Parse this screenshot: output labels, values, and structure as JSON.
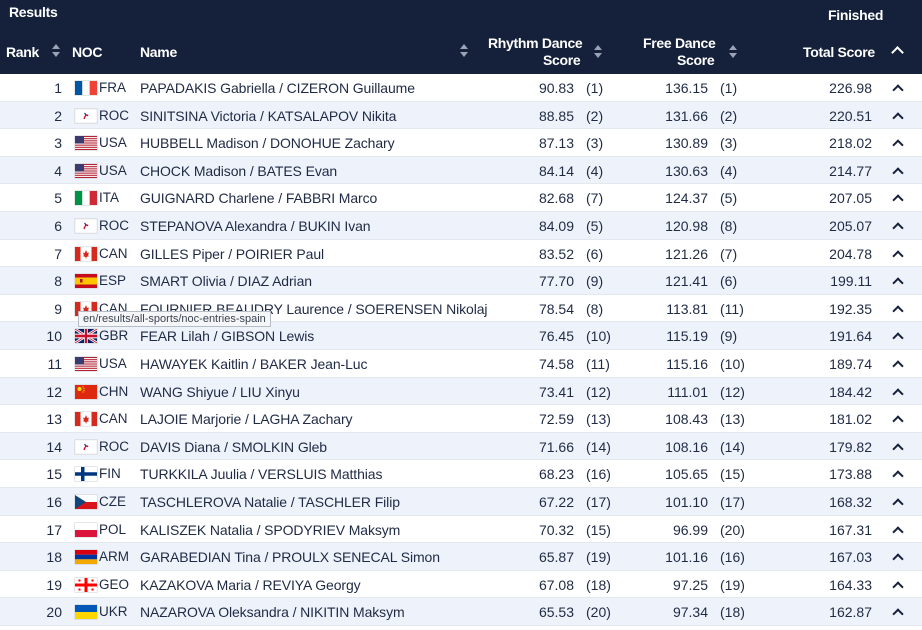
{
  "header": {
    "results": "Results",
    "finished": "Finished",
    "col_rank": "Rank",
    "col_noc": "NOC",
    "col_name": "Name",
    "col_rhythm_1": "Rhythm Dance",
    "col_rhythm_2": "Score",
    "col_free_1": "Free Dance",
    "col_free_2": "Score",
    "col_total": "Total Score"
  },
  "tooltip": "en/results/all-sports/noc-entries-spain",
  "colors": {
    "header_bg": "#15213a",
    "row_alt": "#eef3fb",
    "text": "#1f2a44"
  },
  "rows": [
    {
      "rank": "1",
      "noc": "FRA",
      "name": "PAPADAKIS Gabriella / CIZERON Guillaume",
      "rd": "90.83",
      "rdr": "(1)",
      "fd": "136.15",
      "fdr": "(1)",
      "total": "226.98"
    },
    {
      "rank": "2",
      "noc": "ROC",
      "name": "SINITSINA Victoria / KATSALAPOV Nikita",
      "rd": "88.85",
      "rdr": "(2)",
      "fd": "131.66",
      "fdr": "(2)",
      "total": "220.51"
    },
    {
      "rank": "3",
      "noc": "USA",
      "name": "HUBBELL Madison / DONOHUE Zachary",
      "rd": "87.13",
      "rdr": "(3)",
      "fd": "130.89",
      "fdr": "(3)",
      "total": "218.02"
    },
    {
      "rank": "4",
      "noc": "USA",
      "name": "CHOCK Madison / BATES Evan",
      "rd": "84.14",
      "rdr": "(4)",
      "fd": "130.63",
      "fdr": "(4)",
      "total": "214.77"
    },
    {
      "rank": "5",
      "noc": "ITA",
      "name": "GUIGNARD Charlene / FABBRI Marco",
      "rd": "82.68",
      "rdr": "(7)",
      "fd": "124.37",
      "fdr": "(5)",
      "total": "207.05"
    },
    {
      "rank": "6",
      "noc": "ROC",
      "name": "STEPANOVA Alexandra / BUKIN Ivan",
      "rd": "84.09",
      "rdr": "(5)",
      "fd": "120.98",
      "fdr": "(8)",
      "total": "205.07"
    },
    {
      "rank": "7",
      "noc": "CAN",
      "name": "GILLES Piper / POIRIER Paul",
      "rd": "83.52",
      "rdr": "(6)",
      "fd": "121.26",
      "fdr": "(7)",
      "total": "204.78"
    },
    {
      "rank": "8",
      "noc": "ESP",
      "name": "SMART Olivia / DIAZ Adrian",
      "rd": "77.70",
      "rdr": "(9)",
      "fd": "121.41",
      "fdr": "(6)",
      "total": "199.11"
    },
    {
      "rank": "9",
      "noc": "CAN",
      "name": "FOURNIER BEAUDRY Laurence / SOERENSEN Nikolaj",
      "rd": "78.54",
      "rdr": "(8)",
      "fd": "113.81",
      "fdr": "(11)",
      "total": "192.35"
    },
    {
      "rank": "10",
      "noc": "GBR",
      "name": "FEAR Lilah / GIBSON Lewis",
      "rd": "76.45",
      "rdr": "(10)",
      "fd": "115.19",
      "fdr": "(9)",
      "total": "191.64"
    },
    {
      "rank": "11",
      "noc": "USA",
      "name": "HAWAYEK Kaitlin / BAKER Jean-Luc",
      "rd": "74.58",
      "rdr": "(11)",
      "fd": "115.16",
      "fdr": "(10)",
      "total": "189.74"
    },
    {
      "rank": "12",
      "noc": "CHN",
      "name": "WANG Shiyue / LIU Xinyu",
      "rd": "73.41",
      "rdr": "(12)",
      "fd": "111.01",
      "fdr": "(12)",
      "total": "184.42"
    },
    {
      "rank": "13",
      "noc": "CAN",
      "name": "LAJOIE Marjorie / LAGHA Zachary",
      "rd": "72.59",
      "rdr": "(13)",
      "fd": "108.43",
      "fdr": "(13)",
      "total": "181.02"
    },
    {
      "rank": "14",
      "noc": "ROC",
      "name": "DAVIS Diana / SMOLKIN Gleb",
      "rd": "71.66",
      "rdr": "(14)",
      "fd": "108.16",
      "fdr": "(14)",
      "total": "179.82"
    },
    {
      "rank": "15",
      "noc": "FIN",
      "name": "TURKKILA Juulia / VERSLUIS Matthias",
      "rd": "68.23",
      "rdr": "(16)",
      "fd": "105.65",
      "fdr": "(15)",
      "total": "173.88"
    },
    {
      "rank": "16",
      "noc": "CZE",
      "name": "TASCHLEROVA Natalie / TASCHLER Filip",
      "rd": "67.22",
      "rdr": "(17)",
      "fd": "101.10",
      "fdr": "(17)",
      "total": "168.32"
    },
    {
      "rank": "17",
      "noc": "POL",
      "name": "KALISZEK Natalia / SPODYRIEV Maksym",
      "rd": "70.32",
      "rdr": "(15)",
      "fd": "96.99",
      "fdr": "(20)",
      "total": "167.31"
    },
    {
      "rank": "18",
      "noc": "ARM",
      "name": "GARABEDIAN Tina / PROULX SENECAL Simon",
      "rd": "65.87",
      "rdr": "(19)",
      "fd": "101.16",
      "fdr": "(16)",
      "total": "167.03"
    },
    {
      "rank": "19",
      "noc": "GEO",
      "name": "KAZAKOVA Maria / REVIYA Georgy",
      "rd": "67.08",
      "rdr": "(18)",
      "fd": "97.25",
      "fdr": "(19)",
      "total": "164.33"
    },
    {
      "rank": "20",
      "noc": "UKR",
      "name": "NAZAROVA Oleksandra / NIKITIN Maksym",
      "rd": "65.53",
      "rdr": "(20)",
      "fd": "97.34",
      "fdr": "(18)",
      "total": "162.87"
    }
  ]
}
